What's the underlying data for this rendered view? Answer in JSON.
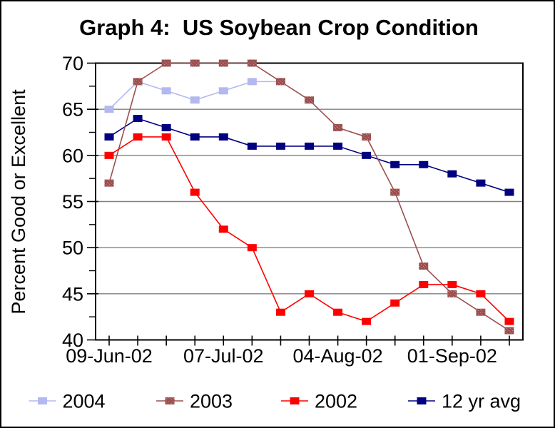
{
  "window": {
    "background_color": "#ffffff",
    "border_color": "#000000"
  },
  "chart_data": {
    "type": "line",
    "title": "Graph 4:  US Soybean Crop Condition",
    "ylabel": "Percent Good or Excellent",
    "xlabel": "",
    "ylim": [
      40,
      70
    ],
    "ytick_step": 5,
    "ytick_minor_step": 2.5,
    "ytick_labels": [
      70,
      65,
      60,
      55,
      50,
      45,
      40
    ],
    "x_point_count": 15,
    "x_tick_labels": [
      {
        "position": 1,
        "label": "09-Jun-02"
      },
      {
        "position": 5,
        "label": "07-Jul-02"
      },
      {
        "position": 9,
        "label": "04-Aug-02"
      },
      {
        "position": 13,
        "label": "01-Sep-02"
      }
    ],
    "grid": "horizontal-major-only",
    "grid_color": "#808080",
    "axis_color": "#000000",
    "legend_position": "bottom",
    "marker_shape": "square",
    "series": [
      {
        "name": "2004",
        "color": "#b3b8f0",
        "textured": false,
        "values": [
          65,
          68,
          67,
          66,
          67,
          68,
          68
        ]
      },
      {
        "name": "2003",
        "color": "#9c4f4f",
        "speckle_color": "#c49090",
        "textured": true,
        "values": [
          57,
          68,
          70,
          70,
          70,
          70,
          68,
          66,
          63,
          62,
          56,
          48,
          45,
          43,
          41
        ]
      },
      {
        "name": "2002",
        "color": "#ff0000",
        "textured": false,
        "values": [
          60,
          62,
          62,
          56,
          52,
          50,
          43,
          45,
          43,
          42,
          44,
          46,
          46,
          45,
          42
        ]
      },
      {
        "name": "12 yr avg",
        "color": "#000080",
        "textured": false,
        "values": [
          62,
          64,
          63,
          62,
          62,
          61,
          61,
          61,
          61,
          60,
          59,
          59,
          58,
          57,
          56
        ]
      }
    ]
  }
}
